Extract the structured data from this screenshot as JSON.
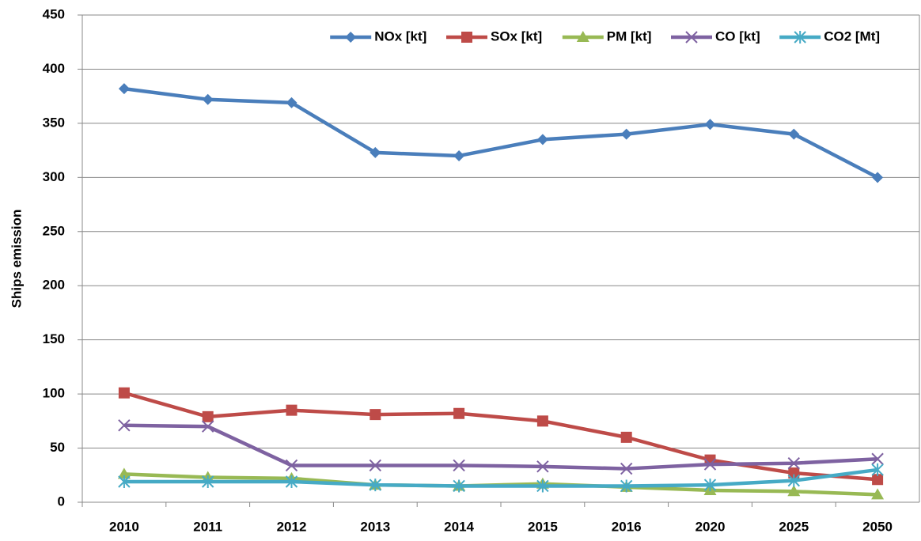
{
  "chart_data": {
    "type": "line",
    "ylabel": "Ships  emission",
    "categories": [
      "2010",
      "2011",
      "2012",
      "2013",
      "2014",
      "2015",
      "2016",
      "2020",
      "2025",
      "2050"
    ],
    "series": [
      {
        "name": "NOx [kt]",
        "color": "#4a7ebb",
        "marker": "diamond",
        "values": [
          382,
          372,
          369,
          323,
          320,
          335,
          340,
          349,
          340,
          300
        ]
      },
      {
        "name": "SOx [kt]",
        "color": "#be4b48",
        "marker": "square",
        "values": [
          101,
          79,
          85,
          81,
          82,
          75,
          60,
          39,
          27,
          21
        ]
      },
      {
        "name": "PM [kt]",
        "color": "#98b954",
        "marker": "triangle",
        "values": [
          26,
          23,
          22,
          16,
          15,
          17,
          14,
          11,
          10,
          7
        ]
      },
      {
        "name": "CO [kt]",
        "color": "#7e62a1",
        "marker": "x",
        "values": [
          71,
          70,
          34,
          34,
          34,
          33,
          31,
          35,
          36,
          40
        ]
      },
      {
        "name": "CO2 [Mt]",
        "color": "#46aac5",
        "marker": "star",
        "values": [
          19,
          19,
          19,
          16,
          15,
          15,
          15,
          16,
          20,
          30
        ]
      }
    ],
    "ylim": [
      0,
      450
    ],
    "yticks": [
      0,
      50,
      100,
      150,
      200,
      250,
      300,
      350,
      400,
      450
    ],
    "grid": true,
    "legend": "top-right"
  }
}
